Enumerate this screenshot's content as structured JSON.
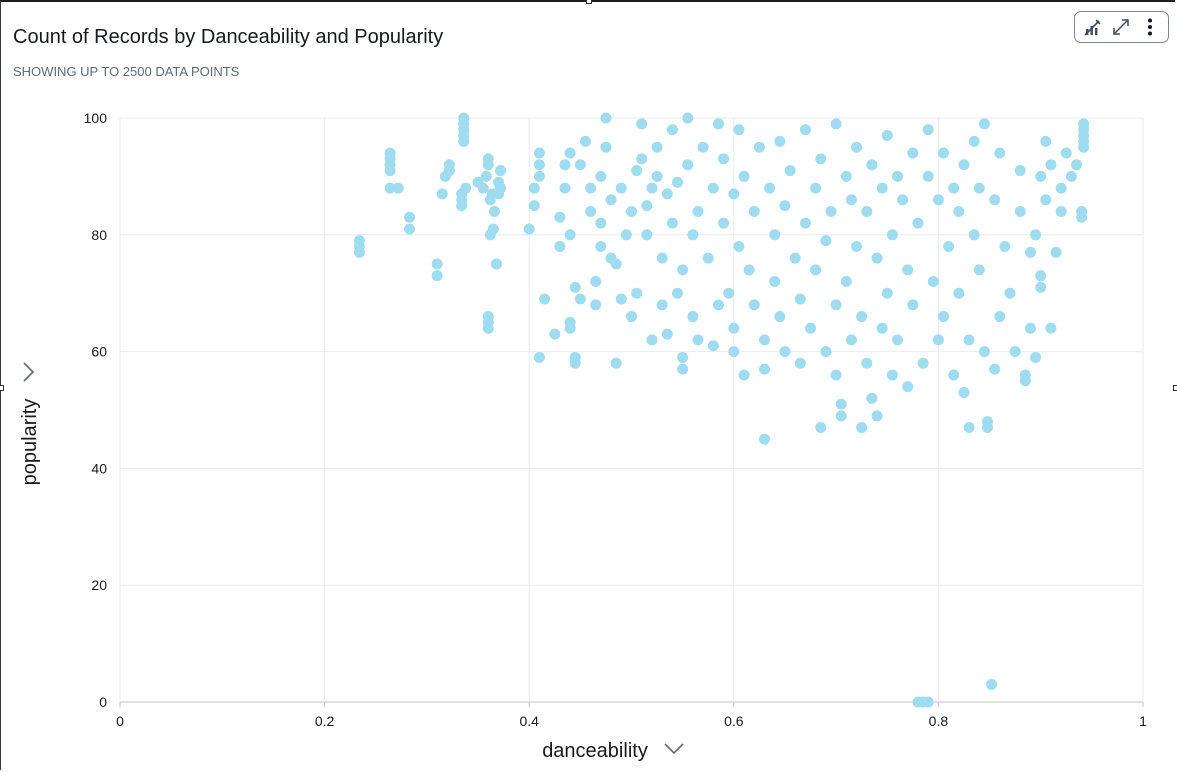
{
  "visual": {
    "title": "Count of Records by Danceability and Popularity",
    "subtitle": "SHOWING UP TO 2500 DATA POINTS"
  },
  "toolbar": {
    "icons": [
      "analyze-icon",
      "expand-icon",
      "more-options-icon"
    ]
  },
  "chart_data": {
    "type": "scatter",
    "xlabel": "danceability",
    "ylabel": "popularity",
    "xlim": [
      0,
      1
    ],
    "ylim": [
      0,
      100
    ],
    "x_ticks": [
      0,
      0.2,
      0.4,
      0.6,
      0.8,
      1
    ],
    "x_tick_labels": [
      "0",
      "0.2",
      "0.4",
      "0.6",
      "0.8",
      "1"
    ],
    "y_ticks": [
      0,
      20,
      40,
      60,
      80,
      100
    ],
    "y_tick_labels": [
      "0",
      "20",
      "40",
      "60",
      "80",
      "100"
    ],
    "grid": true,
    "point_color": "#a0dcf0",
    "points": [
      [
        0.234,
        77
      ],
      [
        0.234,
        78
      ],
      [
        0.234,
        79
      ],
      [
        0.264,
        88
      ],
      [
        0.264,
        91
      ],
      [
        0.264,
        92
      ],
      [
        0.264,
        93
      ],
      [
        0.264,
        94
      ],
      [
        0.272,
        88
      ],
      [
        0.283,
        81
      ],
      [
        0.283,
        83
      ],
      [
        0.31,
        73
      ],
      [
        0.31,
        75
      ],
      [
        0.315,
        87
      ],
      [
        0.318,
        90
      ],
      [
        0.322,
        91
      ],
      [
        0.322,
        92
      ],
      [
        0.334,
        85
      ],
      [
        0.334,
        86
      ],
      [
        0.334,
        87
      ],
      [
        0.338,
        88
      ],
      [
        0.336,
        96
      ],
      [
        0.336,
        97
      ],
      [
        0.336,
        98
      ],
      [
        0.336,
        99
      ],
      [
        0.336,
        100
      ],
      [
        0.35,
        89
      ],
      [
        0.355,
        88
      ],
      [
        0.358,
        90
      ],
      [
        0.36,
        92
      ],
      [
        0.36,
        93
      ],
      [
        0.362,
        86
      ],
      [
        0.364,
        87
      ],
      [
        0.36,
        64
      ],
      [
        0.36,
        65
      ],
      [
        0.36,
        66
      ],
      [
        0.362,
        80
      ],
      [
        0.365,
        81
      ],
      [
        0.366,
        84
      ],
      [
        0.368,
        75
      ],
      [
        0.37,
        87
      ],
      [
        0.37,
        89
      ],
      [
        0.372,
        91
      ],
      [
        0.372,
        88
      ],
      [
        0.4,
        81
      ],
      [
        0.405,
        85
      ],
      [
        0.405,
        88
      ],
      [
        0.41,
        90
      ],
      [
        0.41,
        92
      ],
      [
        0.41,
        94
      ],
      [
        0.41,
        59
      ],
      [
        0.415,
        69
      ],
      [
        0.425,
        63
      ],
      [
        0.43,
        78
      ],
      [
        0.43,
        83
      ],
      [
        0.435,
        88
      ],
      [
        0.435,
        92
      ],
      [
        0.44,
        94
      ],
      [
        0.44,
        80
      ],
      [
        0.44,
        64
      ],
      [
        0.44,
        65
      ],
      [
        0.445,
        71
      ],
      [
        0.445,
        58
      ],
      [
        0.445,
        59
      ],
      [
        0.45,
        69
      ],
      [
        0.45,
        92
      ],
      [
        0.455,
        96
      ],
      [
        0.46,
        88
      ],
      [
        0.46,
        84
      ],
      [
        0.465,
        68
      ],
      [
        0.465,
        72
      ],
      [
        0.47,
        78
      ],
      [
        0.47,
        82
      ],
      [
        0.47,
        90
      ],
      [
        0.475,
        95
      ],
      [
        0.475,
        100
      ],
      [
        0.48,
        86
      ],
      [
        0.48,
        76
      ],
      [
        0.485,
        75
      ],
      [
        0.485,
        58
      ],
      [
        0.49,
        69
      ],
      [
        0.49,
        88
      ],
      [
        0.495,
        80
      ],
      [
        0.5,
        66
      ],
      [
        0.5,
        84
      ],
      [
        0.505,
        91
      ],
      [
        0.505,
        70
      ],
      [
        0.51,
        99
      ],
      [
        0.51,
        93
      ],
      [
        0.515,
        85
      ],
      [
        0.515,
        80
      ],
      [
        0.52,
        88
      ],
      [
        0.52,
        62
      ],
      [
        0.525,
        90
      ],
      [
        0.525,
        95
      ],
      [
        0.53,
        68
      ],
      [
        0.53,
        76
      ],
      [
        0.535,
        63
      ],
      [
        0.535,
        87
      ],
      [
        0.54,
        82
      ],
      [
        0.54,
        98
      ],
      [
        0.545,
        70
      ],
      [
        0.545,
        89
      ],
      [
        0.55,
        59
      ],
      [
        0.55,
        57
      ],
      [
        0.55,
        74
      ],
      [
        0.555,
        92
      ],
      [
        0.555,
        100
      ],
      [
        0.56,
        66
      ],
      [
        0.56,
        80
      ],
      [
        0.565,
        84
      ],
      [
        0.565,
        62
      ],
      [
        0.57,
        95
      ],
      [
        0.575,
        76
      ],
      [
        0.58,
        88
      ],
      [
        0.58,
        61
      ],
      [
        0.585,
        99
      ],
      [
        0.585,
        68
      ],
      [
        0.59,
        82
      ],
      [
        0.59,
        93
      ],
      [
        0.595,
        70
      ],
      [
        0.6,
        87
      ],
      [
        0.6,
        64
      ],
      [
        0.6,
        60
      ],
      [
        0.605,
        78
      ],
      [
        0.605,
        98
      ],
      [
        0.61,
        56
      ],
      [
        0.61,
        90
      ],
      [
        0.615,
        74
      ],
      [
        0.62,
        84
      ],
      [
        0.62,
        68
      ],
      [
        0.625,
        95
      ],
      [
        0.63,
        45
      ],
      [
        0.63,
        57
      ],
      [
        0.63,
        62
      ],
      [
        0.635,
        88
      ],
      [
        0.64,
        80
      ],
      [
        0.64,
        72
      ],
      [
        0.645,
        96
      ],
      [
        0.645,
        66
      ],
      [
        0.65,
        60
      ],
      [
        0.65,
        85
      ],
      [
        0.655,
        91
      ],
      [
        0.66,
        76
      ],
      [
        0.665,
        58
      ],
      [
        0.665,
        69
      ],
      [
        0.67,
        82
      ],
      [
        0.67,
        98
      ],
      [
        0.675,
        64
      ],
      [
        0.68,
        88
      ],
      [
        0.68,
        74
      ],
      [
        0.685,
        47
      ],
      [
        0.685,
        93
      ],
      [
        0.69,
        60
      ],
      [
        0.69,
        79
      ],
      [
        0.695,
        84
      ],
      [
        0.7,
        99
      ],
      [
        0.7,
        68
      ],
      [
        0.7,
        56
      ],
      [
        0.705,
        49
      ],
      [
        0.705,
        51
      ],
      [
        0.71,
        90
      ],
      [
        0.71,
        72
      ],
      [
        0.715,
        62
      ],
      [
        0.715,
        86
      ],
      [
        0.72,
        95
      ],
      [
        0.72,
        78
      ],
      [
        0.725,
        47
      ],
      [
        0.725,
        66
      ],
      [
        0.73,
        84
      ],
      [
        0.73,
        58
      ],
      [
        0.735,
        92
      ],
      [
        0.735,
        52
      ],
      [
        0.74,
        49
      ],
      [
        0.74,
        76
      ],
      [
        0.745,
        88
      ],
      [
        0.745,
        64
      ],
      [
        0.75,
        97
      ],
      [
        0.75,
        70
      ],
      [
        0.755,
        80
      ],
      [
        0.755,
        56
      ],
      [
        0.76,
        90
      ],
      [
        0.76,
        62
      ],
      [
        0.765,
        86
      ],
      [
        0.77,
        74
      ],
      [
        0.77,
        54
      ],
      [
        0.775,
        94
      ],
      [
        0.775,
        68
      ],
      [
        0.78,
        82
      ],
      [
        0.78,
        0
      ],
      [
        0.785,
        0
      ],
      [
        0.79,
        0
      ],
      [
        0.785,
        58
      ],
      [
        0.79,
        90
      ],
      [
        0.79,
        98
      ],
      [
        0.795,
        72
      ],
      [
        0.8,
        86
      ],
      [
        0.8,
        62
      ],
      [
        0.805,
        94
      ],
      [
        0.805,
        66
      ],
      [
        0.81,
        78
      ],
      [
        0.815,
        56
      ],
      [
        0.815,
        88
      ],
      [
        0.82,
        84
      ],
      [
        0.82,
        70
      ],
      [
        0.825,
        53
      ],
      [
        0.825,
        92
      ],
      [
        0.83,
        47
      ],
      [
        0.83,
        62
      ],
      [
        0.835,
        80
      ],
      [
        0.835,
        96
      ],
      [
        0.84,
        74
      ],
      [
        0.84,
        88
      ],
      [
        0.845,
        60
      ],
      [
        0.845,
        99
      ],
      [
        0.848,
        47
      ],
      [
        0.848,
        48
      ],
      [
        0.852,
        3
      ],
      [
        0.855,
        57
      ],
      [
        0.855,
        86
      ],
      [
        0.86,
        66
      ],
      [
        0.86,
        94
      ],
      [
        0.865,
        78
      ],
      [
        0.87,
        70
      ],
      [
        0.875,
        60
      ],
      [
        0.88,
        84
      ],
      [
        0.88,
        91
      ],
      [
        0.885,
        55
      ],
      [
        0.885,
        56
      ],
      [
        0.89,
        64
      ],
      [
        0.89,
        77
      ],
      [
        0.895,
        59
      ],
      [
        0.895,
        80
      ],
      [
        0.9,
        90
      ],
      [
        0.9,
        73
      ],
      [
        0.9,
        71
      ],
      [
        0.905,
        86
      ],
      [
        0.905,
        96
      ],
      [
        0.91,
        64
      ],
      [
        0.91,
        92
      ],
      [
        0.915,
        77
      ],
      [
        0.92,
        84
      ],
      [
        0.92,
        88
      ],
      [
        0.925,
        94
      ],
      [
        0.93,
        90
      ],
      [
        0.935,
        92
      ],
      [
        0.94,
        83
      ],
      [
        0.94,
        84
      ],
      [
        0.942,
        95
      ],
      [
        0.942,
        96
      ],
      [
        0.942,
        97
      ],
      [
        0.942,
        98
      ],
      [
        0.942,
        99
      ]
    ]
  }
}
